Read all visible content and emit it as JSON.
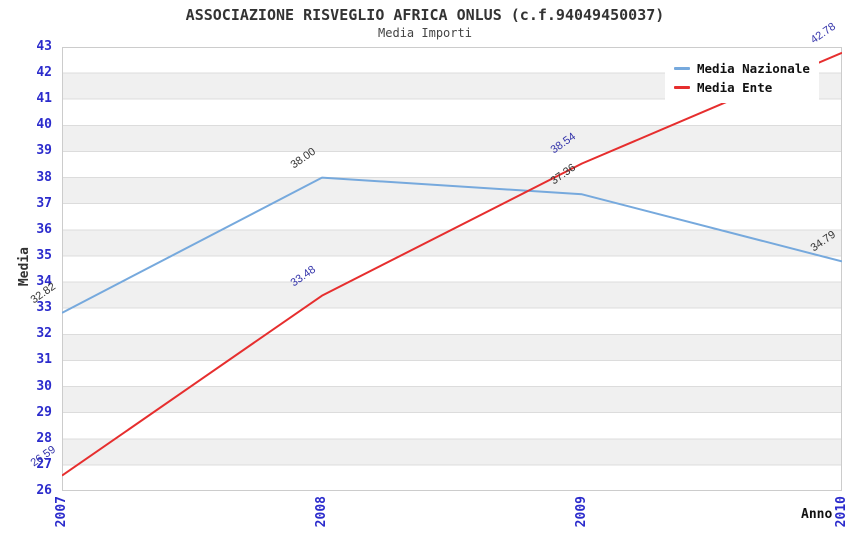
{
  "header": {
    "title": "ASSOCIAZIONE RISVEGLIO AFRICA ONLUS (c.f.94049450037)",
    "subtitle": "Media Importi"
  },
  "axes": {
    "y_title": "Media",
    "x_title": "Anno",
    "y_min": 26,
    "y_max": 43,
    "y_tick_step": 1,
    "x_categories": [
      "2007",
      "2008",
      "2009",
      "2010"
    ]
  },
  "chart_data": {
    "type": "line",
    "title": "ASSOCIAZIONE RISVEGLIO AFRICA ONLUS (c.f.94049450037)",
    "subtitle": "Media Importi",
    "xlabel": "Anno",
    "ylabel": "Media",
    "ylim": [
      26,
      43
    ],
    "grid": true,
    "legend_position": "top-right",
    "categories": [
      "2007",
      "2008",
      "2009",
      "2010"
    ],
    "series": [
      {
        "name": "Media Nazionale",
        "color": "#76a9dd",
        "label_color": "#333333",
        "values": [
          32.82,
          38.0,
          37.36,
          34.79
        ]
      },
      {
        "name": "Media Ente",
        "color": "#e62e2e",
        "label_color": "#3333aa",
        "values": [
          26.59,
          33.48,
          38.54,
          42.78
        ]
      }
    ]
  },
  "colors": {
    "tick_label": "#2b2bcc",
    "band_light": "#ffffff",
    "band_dark": "#f0f0f0",
    "gridline": "#dcdcdc",
    "plot_border": "#cccccc",
    "title_text": "#333333",
    "legend_text": "#111111"
  }
}
